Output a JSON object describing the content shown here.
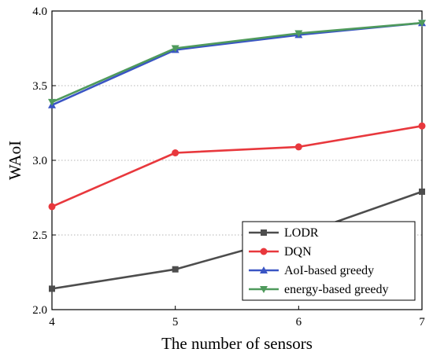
{
  "chart_data": {
    "type": "line",
    "xlabel": "The number of sensors",
    "ylabel": "WAoI",
    "x": [
      4,
      5,
      6,
      7
    ],
    "xticks": [
      "4",
      "5",
      "6",
      "7"
    ],
    "xlim": [
      4,
      7
    ],
    "ylim": [
      2.0,
      4.0
    ],
    "yticks": [
      "2.0",
      "2.5",
      "3.0",
      "3.5",
      "4.0"
    ],
    "grid": "horizontal dotted",
    "legend_position": "bottom-right",
    "series": [
      {
        "name": "LODR",
        "values": [
          2.14,
          2.27,
          2.5,
          2.79
        ],
        "color": "#4d4d4d",
        "marker": "square"
      },
      {
        "name": "DQN",
        "values": [
          2.69,
          3.05,
          3.09,
          3.23
        ],
        "color": "#e8383d",
        "marker": "circle"
      },
      {
        "name": "AoI-based greedy",
        "values": [
          3.37,
          3.74,
          3.84,
          3.92
        ],
        "color": "#3a55c4",
        "marker": "triangle-up"
      },
      {
        "name": "energy-based greedy",
        "values": [
          3.39,
          3.75,
          3.85,
          3.92
        ],
        "color": "#4f9a5c",
        "marker": "triangle-down"
      }
    ]
  }
}
